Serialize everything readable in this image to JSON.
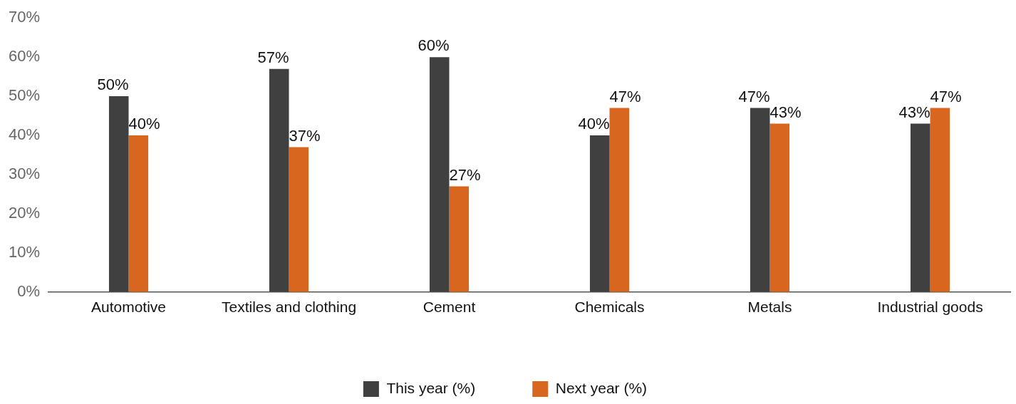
{
  "chart_data": {
    "type": "bar",
    "categories": [
      "Automotive",
      "Textiles and clothing",
      "Cement",
      "Chemicals",
      "Metals",
      "Industrial goods"
    ],
    "series": [
      {
        "name": "This year (%)",
        "color": "#404040",
        "values": [
          50,
          57,
          60,
          40,
          47,
          43
        ],
        "value_labels": [
          "50%",
          "57%",
          "60%",
          "40%",
          "47%",
          "43%"
        ]
      },
      {
        "name": "Next year (%)",
        "color": "#d9661f",
        "values": [
          40,
          37,
          27,
          47,
          43,
          47
        ],
        "value_labels": [
          "40%",
          "37%",
          "27%",
          "47%",
          "43%",
          "47%"
        ]
      }
    ],
    "ylim": [
      0,
      70
    ],
    "yticks": [
      {
        "value": 0,
        "label": "0%"
      },
      {
        "value": 10,
        "label": "10%"
      },
      {
        "value": 20,
        "label": "20%"
      },
      {
        "value": 30,
        "label": "30%"
      },
      {
        "value": 40,
        "label": "40%"
      },
      {
        "value": 50,
        "label": "50%"
      },
      {
        "value": 60,
        "label": "60%"
      },
      {
        "value": 70,
        "label": "70%"
      }
    ],
    "grid": false,
    "legend": "bottom"
  }
}
